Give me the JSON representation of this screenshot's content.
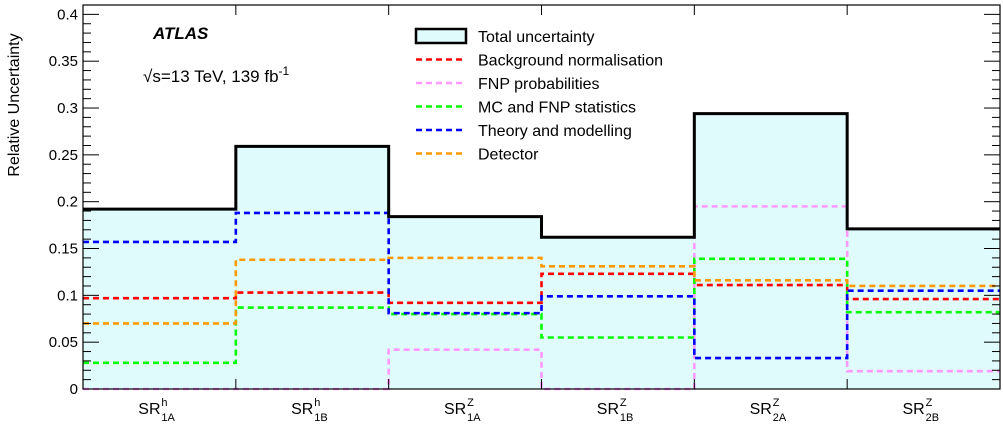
{
  "chart_data": {
    "type": "histogram",
    "ylabel": "Relative Uncertainty",
    "ylim": [
      0,
      0.41
    ],
    "yticks": [
      "0",
      "0.05",
      "0.1",
      "0.15",
      "0.2",
      "0.25",
      "0.3",
      "0.35",
      "0.4"
    ],
    "grid": false,
    "legend_position": "top-center",
    "annotation": {
      "experiment": "ATLAS",
      "sqrt": "√",
      "energy_text": "s=13 TeV, 139 fb",
      "lumi_superscript": "-1"
    },
    "categories": [
      {
        "base": "SR",
        "sup": "h",
        "sub": "1A"
      },
      {
        "base": "SR",
        "sup": "h",
        "sub": "1B"
      },
      {
        "base": "SR",
        "sup": "Z",
        "sub": "1A"
      },
      {
        "base": "SR",
        "sup": "Z",
        "sub": "1B"
      },
      {
        "base": "SR",
        "sup": "Z",
        "sub": "2A"
      },
      {
        "base": "SR",
        "sup": "Z",
        "sub": "2B"
      }
    ],
    "series": [
      {
        "name": "Total uncertainty",
        "style": "filled",
        "color": "#000000",
        "fill": "#e0fbfb",
        "values": [
          0.192,
          0.259,
          0.184,
          0.162,
          0.294,
          0.171
        ]
      },
      {
        "name": "Background normalisation",
        "style": "dashed",
        "color": "#ff0000",
        "values": [
          0.097,
          0.103,
          0.092,
          0.123,
          0.111,
          0.096
        ]
      },
      {
        "name": "FNP probabilities",
        "style": "dashed",
        "color": "#ff99ff",
        "values": [
          0.0,
          0.0,
          0.042,
          0.0,
          0.195,
          0.019
        ]
      },
      {
        "name": "MC and FNP statistics",
        "style": "dashed",
        "color": "#00ff00",
        "values": [
          0.028,
          0.087,
          0.08,
          0.055,
          0.139,
          0.082
        ]
      },
      {
        "name": "Theory and modelling",
        "style": "dashed",
        "color": "#0000ff",
        "values": [
          0.157,
          0.188,
          0.081,
          0.099,
          0.033,
          0.105
        ]
      },
      {
        "name": "Detector",
        "style": "dashed",
        "color": "#ff9900",
        "values": [
          0.07,
          0.138,
          0.14,
          0.131,
          0.116,
          0.11
        ]
      }
    ]
  }
}
